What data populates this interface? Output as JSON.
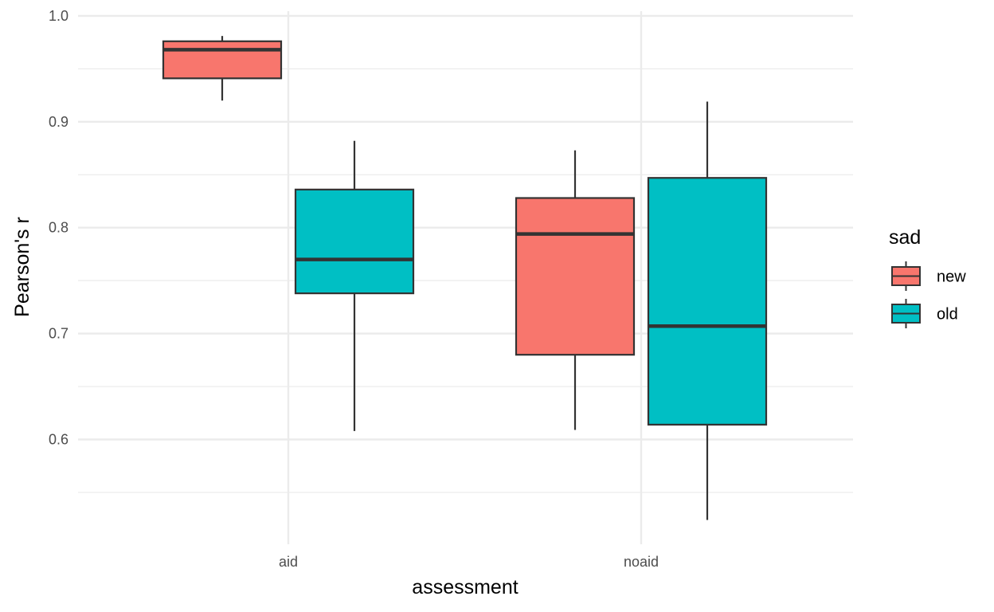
{
  "chart_data": {
    "type": "boxplot",
    "xlabel": "assessment",
    "ylabel": "Pearson's r",
    "categories": [
      "aid",
      "noaid"
    ],
    "y_ticks": [
      "0.6",
      "0.7",
      "0.8",
      "0.9",
      "1.0"
    ],
    "ylim": [
      0.5,
      1.0
    ],
    "grid": true,
    "legend": {
      "title": "sad",
      "position": "right",
      "entries": [
        {
          "label": "new",
          "color": "#F8766D"
        },
        {
          "label": "old",
          "color": "#00BFC4"
        }
      ]
    },
    "series": [
      {
        "name": "new",
        "color": "#F8766D",
        "boxes": [
          {
            "category": "aid",
            "min": 0.92,
            "q1": 0.941,
            "median": 0.968,
            "q3": 0.976,
            "max": 0.981
          },
          {
            "category": "noaid",
            "min": 0.609,
            "q1": 0.68,
            "median": 0.794,
            "q3": 0.828,
            "max": 0.873
          }
        ]
      },
      {
        "name": "old",
        "color": "#00BFC4",
        "boxes": [
          {
            "category": "aid",
            "min": 0.608,
            "q1": 0.738,
            "median": 0.77,
            "q3": 0.836,
            "max": 0.882
          },
          {
            "category": "noaid",
            "min": 0.524,
            "q1": 0.614,
            "median": 0.707,
            "q3": 0.847,
            "max": 0.919
          }
        ]
      }
    ]
  }
}
